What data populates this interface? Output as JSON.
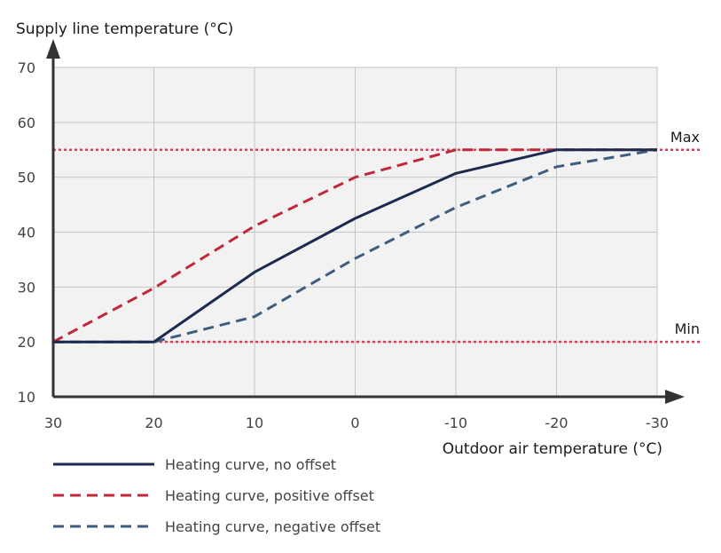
{
  "chart_data": {
    "type": "line",
    "ylabel": "Supply line temperature (°C)",
    "xlabel": "Outdoor air temperature (°C)",
    "xlim": [
      30,
      -30
    ],
    "ylim": [
      10,
      70
    ],
    "x_ticks": [
      30,
      20,
      10,
      0,
      -10,
      -20,
      -30
    ],
    "y_ticks": [
      10,
      20,
      30,
      40,
      50,
      60,
      70
    ],
    "x_tick_labels": [
      "30",
      "20",
      "10",
      "0",
      "-10",
      "-20",
      "-30"
    ],
    "y_tick_labels": [
      "10",
      "20",
      "30",
      "40",
      "50",
      "60",
      "70"
    ],
    "grid": true,
    "legend_position": "bottom-left",
    "reference_lines": [
      {
        "label": "Max",
        "y": 55,
        "color": "#c94a5e"
      },
      {
        "label": "Min",
        "y": 20,
        "color": "#c94a5e"
      }
    ],
    "series": [
      {
        "name": "Heating curve, no offset",
        "color": "#1c2a50",
        "style": "solid",
        "x": [
          30,
          20,
          10,
          0,
          -10,
          -20,
          -30
        ],
        "y": [
          20,
          20,
          32.7,
          42.5,
          50.7,
          55,
          55
        ]
      },
      {
        "name": "Heating curve, positive offset",
        "color": "#c0283a",
        "style": "dashed",
        "x": [
          30,
          20,
          10,
          0,
          -10,
          -20,
          -30
        ],
        "y": [
          20,
          29.8,
          41.1,
          50,
          55,
          55,
          55
        ]
      },
      {
        "name": "Heating curve, negative offset",
        "color": "#3e5e80",
        "style": "dashed",
        "x": [
          30,
          20,
          10,
          0,
          -10,
          -20,
          -30
        ],
        "y": [
          20,
          20,
          24.6,
          35.2,
          44.5,
          51.9,
          55
        ]
      }
    ]
  }
}
